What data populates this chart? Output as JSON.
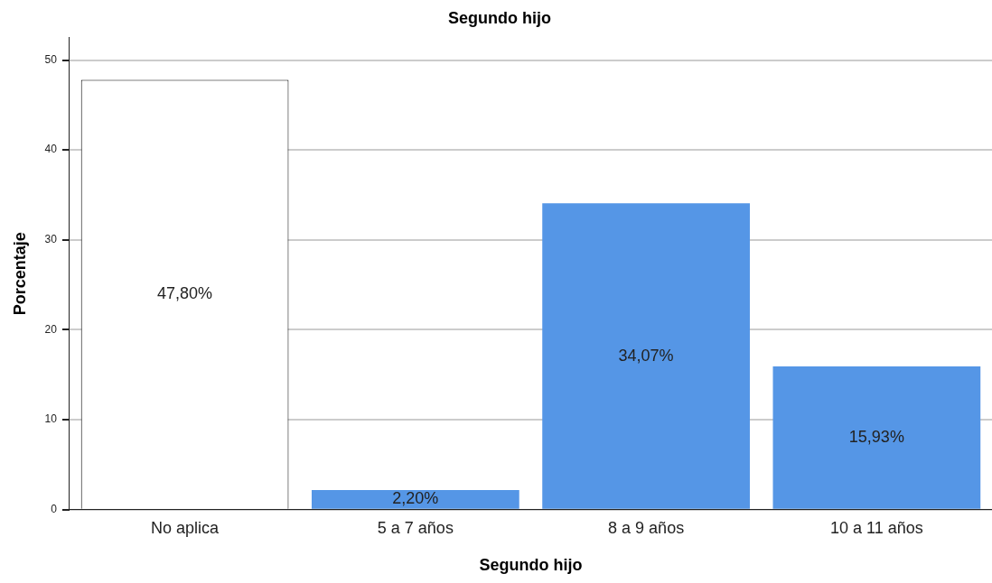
{
  "chart_data": {
    "type": "bar",
    "title": "Segundo hijo",
    "xlabel": "Segundo hijo",
    "ylabel": "Porcentaje",
    "categories": [
      "No aplica",
      "5 a 7 años",
      "8 a 9 años",
      "10 a 11 años"
    ],
    "values": [
      47.8,
      2.2,
      34.07,
      15.93
    ],
    "colors": [
      "#ffffff",
      "#5596e6",
      "#5596e6",
      "#5596e6"
    ],
    "value_labels": [
      "47,80%",
      "2,20%",
      "34,07%",
      "15,93%"
    ],
    "ylim": [
      0,
      52.5
    ],
    "yticks": [
      0,
      10,
      20,
      30,
      40,
      50
    ],
    "grid": "y",
    "legend": false
  }
}
